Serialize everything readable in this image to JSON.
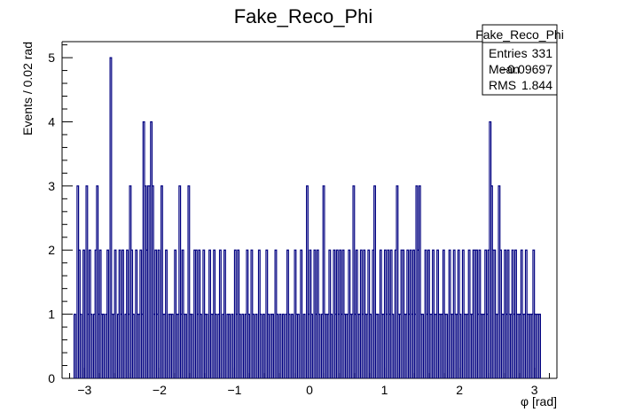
{
  "chart_data": {
    "type": "bar",
    "style": "step-histogram",
    "title": "Fake_Reco_Phi",
    "xlabel": "φ [rad]",
    "ylabel": "Events / 0.02 rad",
    "xlim": [
      -3.3,
      3.3
    ],
    "ylim": [
      0,
      5.25
    ],
    "x_ticks": [
      -3,
      -2,
      -1,
      0,
      1,
      2,
      3
    ],
    "x_tick_labels": [
      "−3",
      "−2",
      "−1",
      "0",
      "1",
      "2",
      "3"
    ],
    "y_ticks": [
      0,
      1,
      2,
      3,
      4,
      5
    ],
    "y_tick_labels": [
      "0",
      "1",
      "2",
      "3",
      "4",
      "5"
    ],
    "bin_width": 0.02,
    "line_color": "#000080",
    "series": [
      {
        "values_by_bin_center": [
          [
            -3.13,
            1
          ],
          [
            -3.09,
            3
          ],
          [
            -3.07,
            2
          ],
          [
            -3.05,
            1
          ],
          [
            -3.01,
            2
          ],
          [
            -2.97,
            3
          ],
          [
            -2.95,
            1
          ],
          [
            -2.93,
            2
          ],
          [
            -2.91,
            1
          ],
          [
            -2.87,
            1
          ],
          [
            -2.85,
            2
          ],
          [
            -2.83,
            3
          ],
          [
            -2.81,
            1
          ],
          [
            -2.79,
            2
          ],
          [
            -2.77,
            1
          ],
          [
            -2.75,
            1
          ],
          [
            -2.71,
            1
          ],
          [
            -2.69,
            2
          ],
          [
            -2.65,
            5
          ],
          [
            -2.63,
            1
          ],
          [
            -2.61,
            1
          ],
          [
            -2.59,
            2
          ],
          [
            -2.55,
            1
          ],
          [
            -2.53,
            2
          ],
          [
            -2.51,
            1
          ],
          [
            -2.49,
            2
          ],
          [
            -2.45,
            1
          ],
          [
            -2.43,
            2
          ],
          [
            -2.41,
            1
          ],
          [
            -2.39,
            3
          ],
          [
            -2.37,
            2
          ],
          [
            -2.35,
            1
          ],
          [
            -2.31,
            2
          ],
          [
            -2.29,
            1
          ],
          [
            -2.27,
            1
          ],
          [
            -2.25,
            2
          ],
          [
            -2.23,
            1
          ],
          [
            -2.21,
            4
          ],
          [
            -2.19,
            3
          ],
          [
            -2.17,
            2
          ],
          [
            -2.15,
            3
          ],
          [
            -2.13,
            3
          ],
          [
            -2.11,
            4
          ],
          [
            -2.09,
            3
          ],
          [
            -2.07,
            1
          ],
          [
            -2.05,
            2
          ],
          [
            -2.03,
            1
          ],
          [
            -2.01,
            2
          ],
          [
            -1.97,
            3
          ],
          [
            -1.95,
            1
          ],
          [
            -1.93,
            1
          ],
          [
            -1.91,
            2
          ],
          [
            -1.87,
            1
          ],
          [
            -1.85,
            1
          ],
          [
            -1.83,
            1
          ],
          [
            -1.79,
            2
          ],
          [
            -1.77,
            1
          ],
          [
            -1.75,
            1
          ],
          [
            -1.73,
            3
          ],
          [
            -1.71,
            1
          ],
          [
            -1.69,
            2
          ],
          [
            -1.67,
            1
          ],
          [
            -1.65,
            1
          ],
          [
            -1.61,
            3
          ],
          [
            -1.59,
            1
          ],
          [
            -1.57,
            1
          ],
          [
            -1.53,
            2
          ],
          [
            -1.51,
            2
          ],
          [
            -1.49,
            1
          ],
          [
            -1.47,
            2
          ],
          [
            -1.45,
            1
          ],
          [
            -1.41,
            2
          ],
          [
            -1.39,
            1
          ],
          [
            -1.37,
            1
          ],
          [
            -1.33,
            2
          ],
          [
            -1.31,
            1
          ],
          [
            -1.29,
            1
          ],
          [
            -1.27,
            2
          ],
          [
            -1.25,
            1
          ],
          [
            -1.21,
            1
          ],
          [
            -1.19,
            2
          ],
          [
            -1.15,
            1
          ],
          [
            -1.13,
            2
          ],
          [
            -1.09,
            1
          ],
          [
            -1.07,
            1
          ],
          [
            -1.03,
            1
          ],
          [
            -0.99,
            2
          ],
          [
            -0.97,
            1
          ],
          [
            -0.95,
            2
          ],
          [
            -0.93,
            1
          ],
          [
            -0.89,
            1
          ],
          [
            -0.85,
            1
          ],
          [
            -0.83,
            2
          ],
          [
            -0.81,
            1
          ],
          [
            -0.77,
            2
          ],
          [
            -0.75,
            1
          ],
          [
            -0.71,
            1
          ],
          [
            -0.67,
            2
          ],
          [
            -0.65,
            1
          ],
          [
            -0.61,
            1
          ],
          [
            -0.57,
            2
          ],
          [
            -0.55,
            1
          ],
          [
            -0.51,
            1
          ],
          [
            -0.49,
            1
          ],
          [
            -0.45,
            2
          ],
          [
            -0.43,
            1
          ],
          [
            -0.39,
            1
          ],
          [
            -0.35,
            1
          ],
          [
            -0.31,
            1
          ],
          [
            -0.29,
            2
          ],
          [
            -0.27,
            1
          ],
          [
            -0.23,
            1
          ],
          [
            -0.19,
            2
          ],
          [
            -0.17,
            1
          ],
          [
            -0.15,
            1
          ],
          [
            -0.11,
            2
          ],
          [
            -0.07,
            1
          ],
          [
            -0.03,
            3
          ],
          [
            -0.01,
            1
          ],
          [
            0.01,
            2
          ],
          [
            0.03,
            1
          ],
          [
            0.07,
            2
          ],
          [
            0.09,
            1
          ],
          [
            0.11,
            2
          ],
          [
            0.13,
            1
          ],
          [
            0.17,
            1
          ],
          [
            0.19,
            3
          ],
          [
            0.21,
            1
          ],
          [
            0.23,
            1
          ],
          [
            0.25,
            1
          ],
          [
            0.27,
            2
          ],
          [
            0.29,
            1
          ],
          [
            0.33,
            2
          ],
          [
            0.35,
            1
          ],
          [
            0.37,
            2
          ],
          [
            0.39,
            1
          ],
          [
            0.41,
            2
          ],
          [
            0.43,
            1
          ],
          [
            0.45,
            2
          ],
          [
            0.47,
            1
          ],
          [
            0.49,
            1
          ],
          [
            0.51,
            1
          ],
          [
            0.53,
            2
          ],
          [
            0.55,
            1
          ],
          [
            0.57,
            1
          ],
          [
            0.59,
            3
          ],
          [
            0.61,
            1
          ],
          [
            0.63,
            2
          ],
          [
            0.65,
            1
          ],
          [
            0.67,
            1
          ],
          [
            0.69,
            2
          ],
          [
            0.71,
            1
          ],
          [
            0.73,
            2
          ],
          [
            0.75,
            1
          ],
          [
            0.77,
            1
          ],
          [
            0.79,
            2
          ],
          [
            0.81,
            1
          ],
          [
            0.85,
            2
          ],
          [
            0.87,
            3
          ],
          [
            0.89,
            1
          ],
          [
            0.91,
            1
          ],
          [
            0.95,
            2
          ],
          [
            0.97,
            1
          ],
          [
            0.99,
            1
          ],
          [
            1.01,
            2
          ],
          [
            1.03,
            1
          ],
          [
            1.05,
            2
          ],
          [
            1.07,
            1
          ],
          [
            1.09,
            2
          ],
          [
            1.11,
            1
          ],
          [
            1.15,
            2
          ],
          [
            1.17,
            3
          ],
          [
            1.19,
            1
          ],
          [
            1.21,
            1
          ],
          [
            1.23,
            2
          ],
          [
            1.25,
            2
          ],
          [
            1.27,
            1
          ],
          [
            1.29,
            1
          ],
          [
            1.31,
            2
          ],
          [
            1.33,
            1
          ],
          [
            1.35,
            2
          ],
          [
            1.37,
            1
          ],
          [
            1.39,
            2
          ],
          [
            1.41,
            1
          ],
          [
            1.43,
            3
          ],
          [
            1.45,
            2
          ],
          [
            1.47,
            3
          ],
          [
            1.49,
            1
          ],
          [
            1.51,
            1
          ],
          [
            1.55,
            2
          ],
          [
            1.57,
            1
          ],
          [
            1.59,
            2
          ],
          [
            1.61,
            1
          ],
          [
            1.63,
            1
          ],
          [
            1.65,
            2
          ],
          [
            1.67,
            1
          ],
          [
            1.69,
            1
          ],
          [
            1.71,
            2
          ],
          [
            1.73,
            1
          ],
          [
            1.75,
            1
          ],
          [
            1.77,
            1
          ],
          [
            1.79,
            2
          ],
          [
            1.81,
            1
          ],
          [
            1.83,
            1
          ],
          [
            1.87,
            2
          ],
          [
            1.89,
            1
          ],
          [
            1.91,
            1
          ],
          [
            1.93,
            2
          ],
          [
            1.95,
            1
          ],
          [
            1.97,
            1
          ],
          [
            1.99,
            2
          ],
          [
            2.01,
            1
          ],
          [
            2.05,
            2
          ],
          [
            2.07,
            1
          ],
          [
            2.09,
            1
          ],
          [
            2.11,
            1
          ],
          [
            2.13,
            2
          ],
          [
            2.15,
            1
          ],
          [
            2.17,
            1
          ],
          [
            2.19,
            2
          ],
          [
            2.21,
            2
          ],
          [
            2.23,
            2
          ],
          [
            2.25,
            1
          ],
          [
            2.27,
            2
          ],
          [
            2.29,
            1
          ],
          [
            2.31,
            1
          ],
          [
            2.33,
            1
          ],
          [
            2.35,
            2
          ],
          [
            2.37,
            1
          ],
          [
            2.39,
            2
          ],
          [
            2.41,
            4
          ],
          [
            2.43,
            3
          ],
          [
            2.45,
            2
          ],
          [
            2.47,
            2
          ],
          [
            2.49,
            1
          ],
          [
            2.51,
            1
          ],
          [
            2.53,
            3
          ],
          [
            2.55,
            2
          ],
          [
            2.57,
            1
          ],
          [
            2.59,
            1
          ],
          [
            2.61,
            2
          ],
          [
            2.63,
            1
          ],
          [
            2.65,
            2
          ],
          [
            2.67,
            1
          ],
          [
            2.69,
            1
          ],
          [
            2.71,
            2
          ],
          [
            2.73,
            1
          ],
          [
            2.75,
            2
          ],
          [
            2.77,
            1
          ],
          [
            2.79,
            1
          ],
          [
            2.81,
            1
          ],
          [
            2.83,
            2
          ],
          [
            2.85,
            1
          ],
          [
            2.87,
            1
          ],
          [
            2.89,
            2
          ],
          [
            2.91,
            1
          ],
          [
            2.93,
            1
          ],
          [
            2.95,
            1
          ],
          [
            2.97,
            1
          ],
          [
            2.99,
            2
          ],
          [
            3.01,
            1
          ],
          [
            3.03,
            1
          ],
          [
            3.05,
            1
          ],
          [
            3.07,
            1
          ]
        ]
      }
    ],
    "stats_box": {
      "title": "Fake_Reco_Phi",
      "rows": [
        {
          "label": "Entries",
          "value": "331"
        },
        {
          "label": "Mean",
          "value": "−0.09697"
        },
        {
          "label": "RMS",
          "value": "1.844"
        }
      ]
    }
  }
}
